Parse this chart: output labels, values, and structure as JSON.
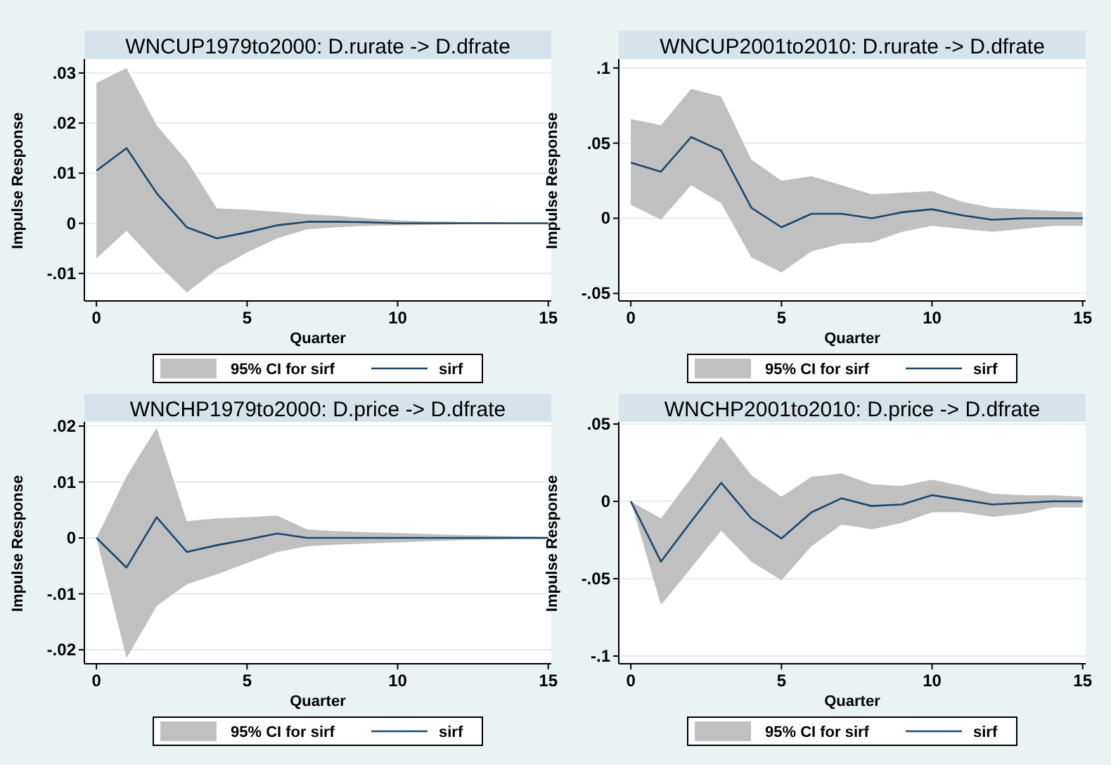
{
  "chart_data": [
    {
      "type": "line",
      "title": "WNCUP1979to2000: D.rurate -> D.dfrate",
      "xlabel": "Quarter",
      "ylabel": "Impulse Response",
      "annotations": [
        "95% CI for sirf"
      ],
      "x": [
        0,
        1,
        2,
        3,
        4,
        5,
        6,
        7,
        8,
        9,
        10,
        11,
        12,
        13,
        14,
        15
      ],
      "xlim": [
        -0.4,
        15.1
      ],
      "ylim": [
        -0.0155,
        0.0325
      ],
      "xticks": [
        0,
        5,
        10,
        15
      ],
      "yticks": [
        {
          "value": -0.01,
          "label": "-.01"
        },
        {
          "value": 0,
          "label": "0"
        },
        {
          "value": 0.01,
          "label": ".01"
        },
        {
          "value": 0.02,
          "label": ".02"
        },
        {
          "value": 0.03,
          "label": ".03"
        }
      ],
      "grid": "y",
      "legend": "bottom",
      "series": [
        {
          "name": "sirf",
          "color": "#1a476f",
          "values": [
            0.0105,
            0.015,
            0.006,
            -0.0008,
            -0.003,
            -0.0018,
            -0.0004,
            0.0003,
            0.0003,
            0.0002,
            0,
            0,
            0,
            0,
            0,
            0
          ],
          "lower": [
            -0.007,
            -0.0015,
            -0.008,
            -0.0138,
            -0.0092,
            -0.0058,
            -0.003,
            -0.0012,
            -0.0008,
            -0.0005,
            -0.0004,
            -0.0003,
            -0.0002,
            -0.0001,
            -0.0001,
            -0.0001
          ],
          "upper": [
            0.028,
            0.031,
            0.0195,
            0.0125,
            0.003,
            0.0027,
            0.0023,
            0.0018,
            0.0015,
            0.001,
            0.0006,
            0.0004,
            0.0003,
            0.0002,
            0.0001,
            0.0001
          ]
        }
      ]
    },
    {
      "type": "line",
      "title": "WNCUP2001to2010: D.rurate -> D.dfrate",
      "xlabel": "Quarter",
      "ylabel": "Impulse Response",
      "annotations": [
        "95% CI for sirf"
      ],
      "x": [
        0,
        1,
        2,
        3,
        4,
        5,
        6,
        7,
        8,
        9,
        10,
        11,
        12,
        13,
        14,
        15
      ],
      "xlim": [
        -0.4,
        15.1
      ],
      "ylim": [
        -0.055,
        0.105
      ],
      "xticks": [
        0,
        5,
        10,
        15
      ],
      "yticks": [
        {
          "value": -0.05,
          "label": "-.05"
        },
        {
          "value": 0,
          "label": "0"
        },
        {
          "value": 0.05,
          "label": ".05"
        },
        {
          "value": 0.1,
          "label": ".1"
        }
      ],
      "grid": "y",
      "legend": "bottom",
      "series": [
        {
          "name": "sirf",
          "color": "#1a476f",
          "values": [
            0.037,
            0.031,
            0.054,
            0.045,
            0.007,
            -0.006,
            0.003,
            0.003,
            0,
            0.004,
            0.006,
            0.002,
            -0.001,
            0,
            0,
            0
          ],
          "lower": [
            0.009,
            -0.001,
            0.022,
            0.01,
            -0.026,
            -0.036,
            -0.022,
            -0.017,
            -0.016,
            -0.009,
            -0.005,
            -0.007,
            -0.009,
            -0.007,
            -0.005,
            -0.005
          ],
          "upper": [
            0.066,
            0.062,
            0.086,
            0.081,
            0.039,
            0.025,
            0.028,
            0.022,
            0.016,
            0.017,
            0.018,
            0.011,
            0.007,
            0.006,
            0.005,
            0.004
          ]
        }
      ]
    },
    {
      "type": "line",
      "title": "WNCHP1979to2000: D.price -> D.dfrate",
      "xlabel": "Quarter",
      "ylabel": "Impulse Response",
      "annotations": [
        "95% CI for sirf"
      ],
      "x": [
        0,
        1,
        2,
        3,
        4,
        5,
        6,
        7,
        8,
        9,
        10,
        11,
        12,
        13,
        14,
        15
      ],
      "xlim": [
        -0.4,
        15.1
      ],
      "ylim": [
        -0.0225,
        0.0205
      ],
      "xticks": [
        0,
        5,
        10,
        15
      ],
      "yticks": [
        {
          "value": -0.02,
          "label": "-.02"
        },
        {
          "value": -0.01,
          "label": "-.01"
        },
        {
          "value": 0,
          "label": "0"
        },
        {
          "value": 0.01,
          "label": ".01"
        },
        {
          "value": 0.02,
          "label": ".02"
        }
      ],
      "grid": "y",
      "legend": "bottom",
      "series": [
        {
          "name": "sirf",
          "color": "#1a476f",
          "values": [
            0,
            -0.0053,
            0.0037,
            -0.0025,
            -0.0013,
            -0.0003,
            0.0008,
            0,
            0,
            0,
            0,
            0,
            0,
            0,
            0,
            0
          ],
          "lower": [
            0,
            -0.0215,
            -0.0122,
            -0.0083,
            -0.0065,
            -0.0045,
            -0.0025,
            -0.0015,
            -0.0012,
            -0.001,
            -0.0008,
            -0.0006,
            -0.0004,
            -0.0003,
            -0.0002,
            -0.0002
          ],
          "upper": [
            0,
            0.011,
            0.0197,
            0.003,
            0.0035,
            0.0037,
            0.004,
            0.0015,
            0.0012,
            0.001,
            0.0009,
            0.0007,
            0.0005,
            0.0004,
            0.0003,
            0.0002
          ]
        }
      ]
    },
    {
      "type": "line",
      "title": "WNCHP2001to2010: D.price -> D.dfrate",
      "xlabel": "Quarter",
      "ylabel": "Impulse Response",
      "annotations": [
        "95% CI for sirf"
      ],
      "x": [
        0,
        1,
        2,
        3,
        4,
        5,
        6,
        7,
        8,
        9,
        10,
        11,
        12,
        13,
        14,
        15
      ],
      "xlim": [
        -0.4,
        15.1
      ],
      "ylim": [
        -0.105,
        0.0505
      ],
      "xticks": [
        0,
        5,
        10,
        15
      ],
      "yticks": [
        {
          "value": -0.1,
          "label": "-.1"
        },
        {
          "value": -0.05,
          "label": "-.05"
        },
        {
          "value": 0,
          "label": "0"
        },
        {
          "value": 0.05,
          "label": ".05"
        }
      ],
      "grid": "y",
      "legend": "bottom",
      "series": [
        {
          "name": "sirf",
          "color": "#1a476f",
          "values": [
            0,
            -0.039,
            -0.013,
            0.012,
            -0.011,
            -0.024,
            -0.007,
            0.002,
            -0.003,
            -0.002,
            0.004,
            0.001,
            -0.002,
            -0.001,
            0,
            0
          ],
          "lower": [
            0,
            -0.067,
            -0.043,
            -0.019,
            -0.039,
            -0.051,
            -0.029,
            -0.015,
            -0.018,
            -0.014,
            -0.007,
            -0.007,
            -0.01,
            -0.008,
            -0.004,
            -0.004
          ],
          "upper": [
            0,
            -0.011,
            0.015,
            0.042,
            0.017,
            0.003,
            0.016,
            0.018,
            0.011,
            0.01,
            0.014,
            0.01,
            0.005,
            0.004,
            0.004,
            0.003
          ]
        }
      ]
    }
  ]
}
